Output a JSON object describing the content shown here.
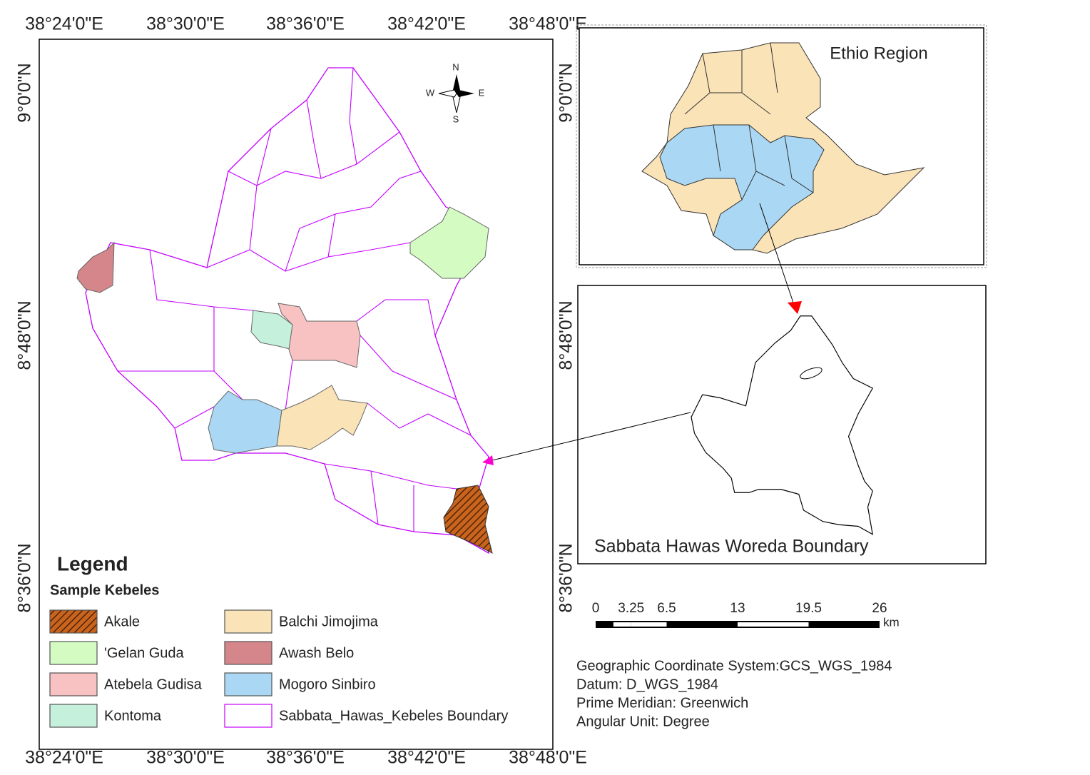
{
  "map": {
    "longitude_labels": [
      "38°24'0\"E",
      "38°30'0\"E",
      "38°36'0\"E",
      "38°42'0\"E",
      "38°48'0\"E"
    ],
    "latitude_labels": [
      "9°0'0\"N",
      "8°48'0\"N",
      "8°36'0\"N"
    ],
    "compass": {
      "n": "N",
      "e": "E",
      "s": "S",
      "w": "W"
    },
    "legend": {
      "title": "Legend",
      "subtitle": "Sample Kebeles",
      "items": [
        {
          "label": "Akale",
          "color": "#c8641e",
          "style": "hatch"
        },
        {
          "label": "'Gelan Guda",
          "color": "#d4fcc2",
          "style": "fill"
        },
        {
          "label": "Atebela Gudisa",
          "color": "#f8c2c2",
          "style": "fill"
        },
        {
          "label": "Kontoma",
          "color": "#c5f0dc",
          "style": "fill"
        },
        {
          "label": "Balchi Jimojima",
          "color": "#fbe3b8",
          "style": "fill"
        },
        {
          "label": "Awash Belo",
          "color": "#d4868a",
          "style": "fill"
        },
        {
          "label": "Mogoro Sinbiro",
          "color": "#aad8f4",
          "style": "fill"
        },
        {
          "label": "Sabbata_Hawas_Kebeles Boundary",
          "color": "#c400ff",
          "style": "outline"
        }
      ]
    },
    "inset_region": {
      "title": "Ethio Region"
    },
    "inset_woreda": {
      "title": "Sabbata Hawas Woreda Boundary"
    },
    "scale_bar": {
      "ticks": [
        0,
        3.25,
        6.5,
        13,
        19.5,
        26
      ],
      "unit": "km"
    },
    "coordinate_info": [
      "Geographic Coordinate System:GCS_WGS_1984",
      "Datum: D_WGS_1984",
      "Prime Meridian: Greenwich",
      "Angular Unit: Degree"
    ]
  }
}
